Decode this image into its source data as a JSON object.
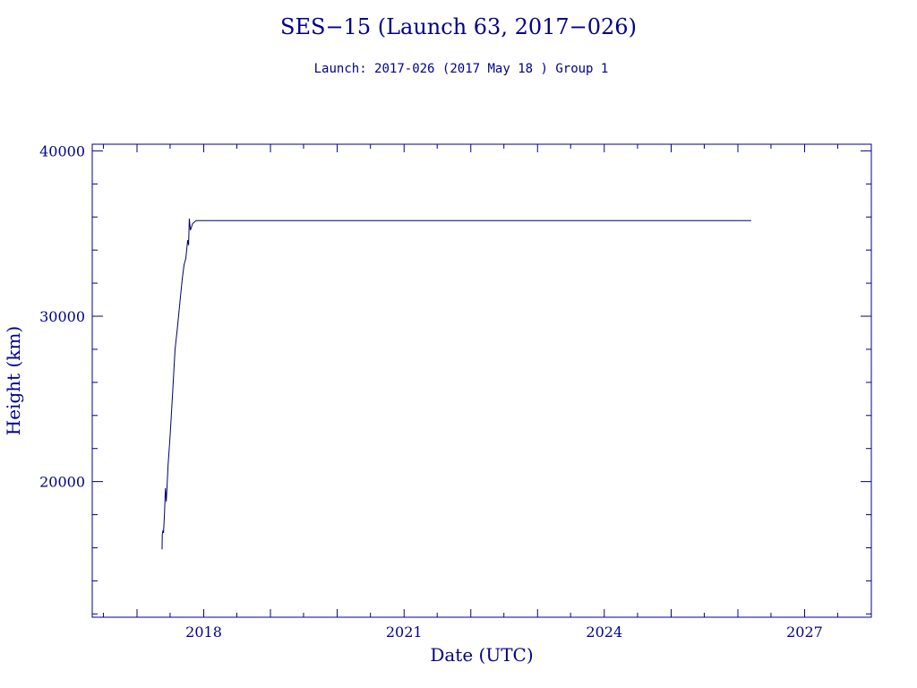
{
  "chart_data": {
    "type": "line",
    "title": "SES−15 (Launch 63, 2017−026)",
    "subtitle": "Launch: 2017-026  (2017 May 18 )  Group 1",
    "xlabel": "Date (UTC)",
    "ylabel": "Height (km)",
    "xlim": [
      "2016-05-01",
      "2028-01-01"
    ],
    "ylim": [
      11800,
      40400
    ],
    "x_ticks": [
      "2018-01-01",
      "2021-01-01",
      "2024-01-01",
      "2027-01-01"
    ],
    "x_tick_labels": [
      "2018",
      "2021",
      "2024",
      "2027"
    ],
    "y_ticks": [
      20000,
      30000,
      40000
    ],
    "y_tick_labels": [
      "20000",
      "30000",
      "40000"
    ],
    "grid": false,
    "colors": {
      "line": "#00006a",
      "axes": "#00008b",
      "text": "#00008b"
    },
    "series": [
      {
        "points": [
          [
            "2017-05-18",
            15900
          ],
          [
            "2017-05-19",
            16800
          ],
          [
            "2017-05-22",
            17000
          ],
          [
            "2017-05-26",
            16900
          ],
          [
            "2017-06-01",
            18200
          ],
          [
            "2017-06-05",
            19600
          ],
          [
            "2017-06-10",
            18800
          ],
          [
            "2017-06-20",
            21000
          ],
          [
            "2017-07-01",
            22800
          ],
          [
            "2017-07-15",
            25400
          ],
          [
            "2017-07-28",
            28000
          ],
          [
            "2017-08-10",
            29300
          ],
          [
            "2017-08-25",
            31000
          ],
          [
            "2017-09-05",
            32200
          ],
          [
            "2017-09-15",
            33100
          ],
          [
            "2017-09-25",
            33500
          ],
          [
            "2017-10-05",
            34600
          ],
          [
            "2017-10-10",
            34300
          ],
          [
            "2017-10-14",
            35900
          ],
          [
            "2017-10-20",
            35200
          ],
          [
            "2017-11-01",
            35600
          ],
          [
            "2017-11-20",
            35786
          ],
          [
            "2026-03-15",
            35786
          ]
        ]
      }
    ]
  }
}
